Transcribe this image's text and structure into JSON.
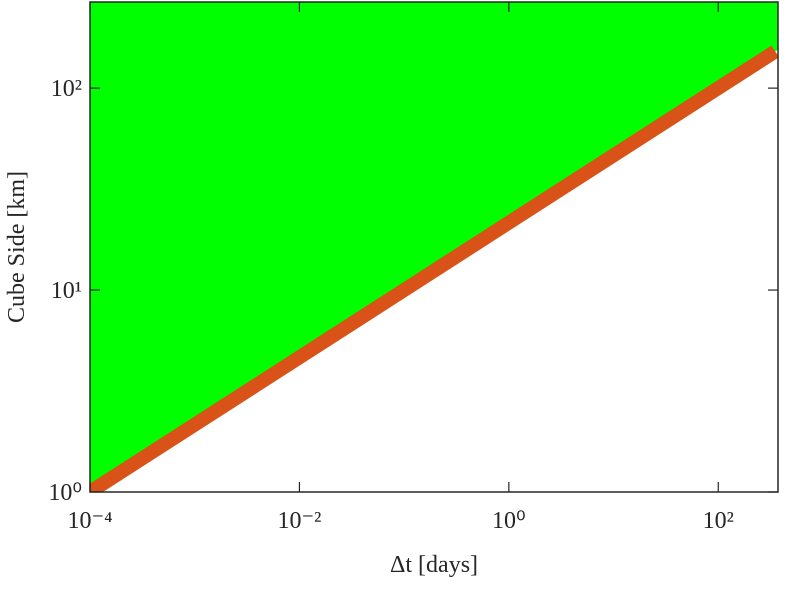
{
  "chart_data": {
    "type": "area_line",
    "x_label": "Δt [days]",
    "y_label": "Cube Side [km]",
    "x": [
      0.0001,
      350
    ],
    "values": [
      1,
      152
    ],
    "color": "#d95319",
    "fill_above_color": "#00ff00",
    "log_x": true,
    "log_y": true,
    "xlim": [
      0.0001,
      372
    ],
    "ylim": [
      1,
      267
    ],
    "xticks": [
      {
        "value": 0.0001,
        "label": "10⁻⁴"
      },
      {
        "value": 0.01,
        "label": "10⁻²"
      },
      {
        "value": 1,
        "label": "10⁰"
      },
      {
        "value": 100,
        "label": "10²"
      }
    ],
    "yticks": [
      {
        "value": 1,
        "label": "10⁰"
      },
      {
        "value": 10,
        "label": "10¹"
      },
      {
        "value": 100,
        "label": "10²"
      }
    ]
  }
}
